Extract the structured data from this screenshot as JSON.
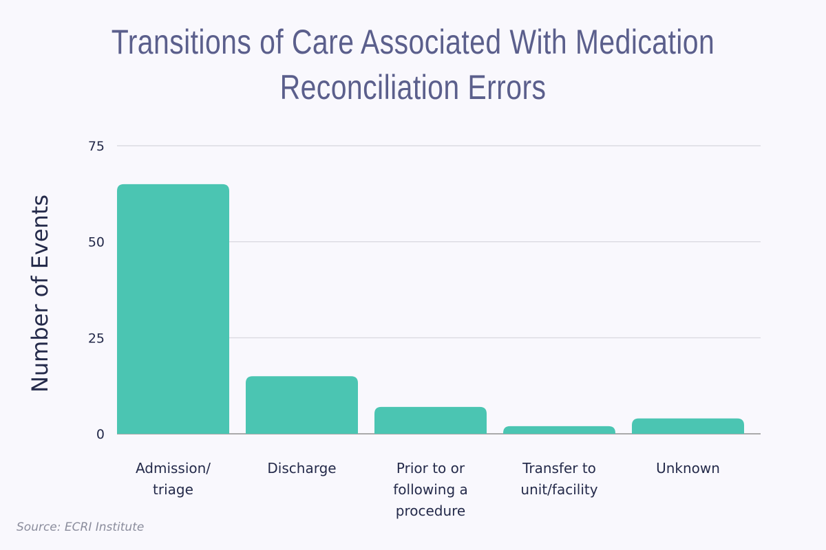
{
  "chart_data": {
    "type": "bar",
    "title": "Transitions of Care Associated With Medication Reconciliation Errors",
    "xlabel": "",
    "ylabel": "Number of Events",
    "categories": [
      [
        "Admission/",
        "triage"
      ],
      [
        "Discharge"
      ],
      [
        "Prior to or",
        "following a",
        "procedure"
      ],
      [
        "Transfer to",
        "unit/facility"
      ],
      [
        "Unknown"
      ]
    ],
    "values": [
      65,
      15,
      7,
      2,
      4
    ],
    "ylim": [
      0,
      75
    ],
    "yticks": [
      0,
      25,
      50,
      75
    ],
    "grid": true,
    "bar_color": "#4bc5b2",
    "source": "Source: ECRI Institute"
  }
}
